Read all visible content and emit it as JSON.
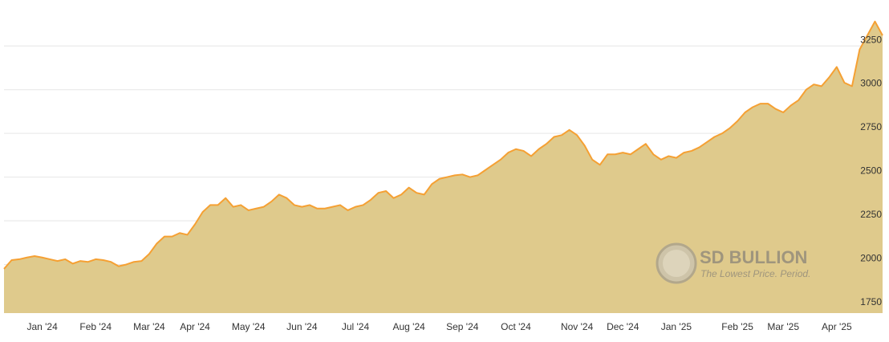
{
  "chart_data": {
    "type": "area",
    "categories": [
      null,
      null,
      null,
      null,
      null,
      "Jan '24",
      null,
      null,
      null,
      null,
      null,
      null,
      "Feb '24",
      null,
      null,
      null,
      null,
      null,
      null,
      "Mar '24",
      null,
      null,
      null,
      null,
      null,
      "Apr '24",
      null,
      null,
      null,
      null,
      null,
      null,
      "May '24",
      null,
      null,
      null,
      null,
      null,
      null,
      "Jun '24",
      null,
      null,
      null,
      null,
      null,
      null,
      "Jul '24",
      null,
      null,
      null,
      null,
      null,
      null,
      "Aug '24",
      null,
      null,
      null,
      null,
      null,
      null,
      "Sep '24",
      null,
      null,
      null,
      null,
      null,
      null,
      "Oct '24",
      null,
      null,
      null,
      null,
      null,
      null,
      null,
      "Nov '24",
      null,
      null,
      null,
      null,
      null,
      "Dec '24",
      null,
      null,
      null,
      null,
      null,
      null,
      "Jan '25",
      null,
      null,
      null,
      null,
      null,
      null,
      null,
      "Feb '25",
      null,
      null,
      null,
      null,
      null,
      "Mar '25",
      null,
      null,
      null,
      null,
      null,
      null,
      "Apr '25",
      null,
      null,
      null,
      null,
      null,
      null
    ],
    "values": [
      1975,
      2025,
      2030,
      2040,
      2048,
      2040,
      2030,
      2020,
      2030,
      2005,
      2020,
      2015,
      2030,
      2025,
      2015,
      1990,
      2000,
      2015,
      2020,
      2060,
      2120,
      2160,
      2160,
      2180,
      2170,
      2230,
      2300,
      2340,
      2340,
      2380,
      2330,
      2340,
      2310,
      2320,
      2330,
      2360,
      2400,
      2380,
      2340,
      2330,
      2340,
      2320,
      2320,
      2330,
      2340,
      2310,
      2330,
      2340,
      2370,
      2410,
      2420,
      2380,
      2400,
      2440,
      2410,
      2400,
      2460,
      2490,
      2500,
      2510,
      2515,
      2500,
      2510,
      2540,
      2570,
      2600,
      2640,
      2660,
      2650,
      2620,
      2660,
      2690,
      2730,
      2740,
      2770,
      2740,
      2680,
      2600,
      2570,
      2630,
      2630,
      2640,
      2630,
      2660,
      2690,
      2630,
      2600,
      2620,
      2610,
      2640,
      2650,
      2670,
      2700,
      2730,
      2750,
      2780,
      2820,
      2870,
      2900,
      2920,
      2920,
      2890,
      2870,
      2910,
      2940,
      3000,
      3030,
      3020,
      3070,
      3130,
      3040,
      3020,
      3230,
      3310,
      3390,
      3310
    ],
    "fill": "#dfca8c",
    "color": "#f5a033",
    "ylim": [
      1722,
      3490
    ],
    "yticks": [
      1750,
      2000,
      2250,
      2500,
      2750,
      3000,
      3250
    ],
    "grid": true
  },
  "watermark": {
    "title": "SD BULLION",
    "tagline": "The Lowest Price. Period."
  }
}
